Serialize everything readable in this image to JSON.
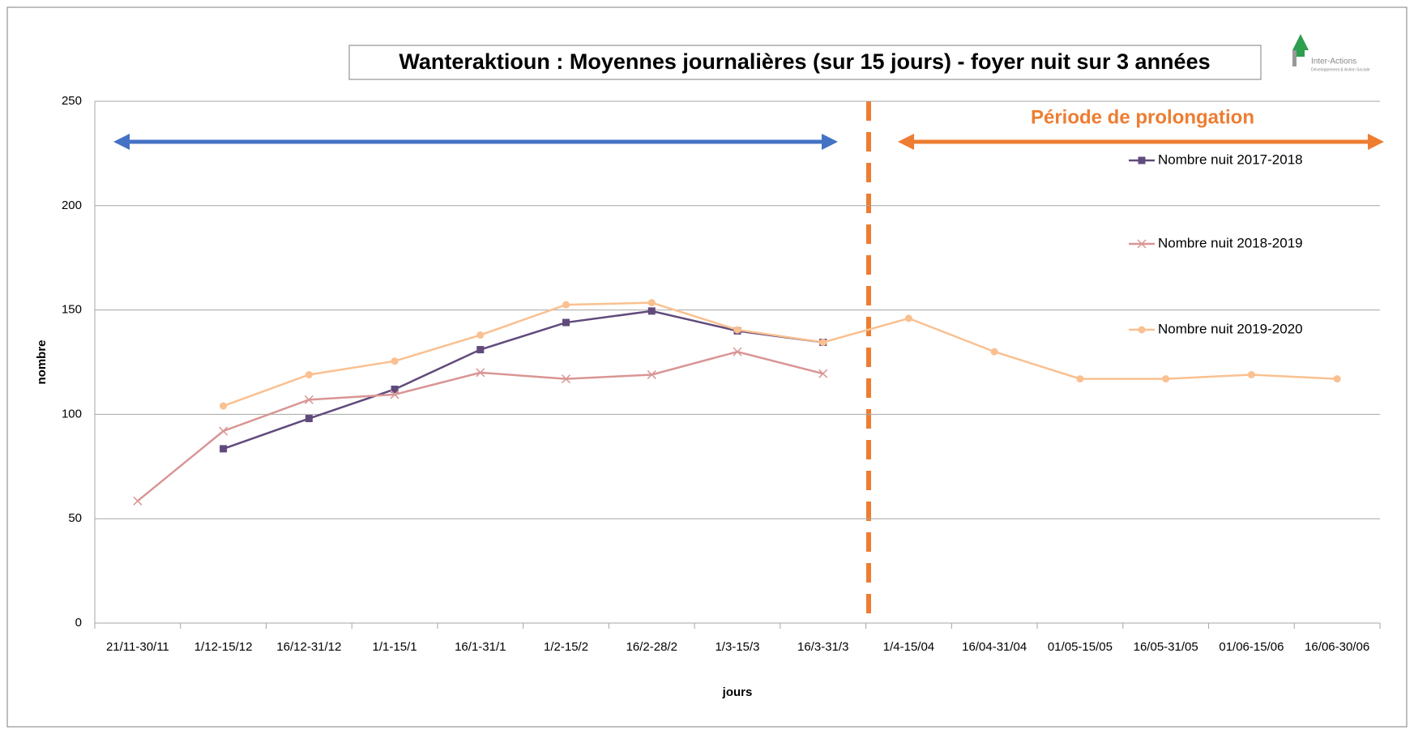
{
  "chart_data": {
    "type": "line",
    "title": "Wanteraktioun : Moyennes journalières (sur 15 jours) - foyer nuit sur 3 années",
    "x_label": "jours",
    "y_label": "nombre",
    "annotation": "Période de prolongation",
    "categories": [
      "21/11-30/11",
      "1/12-15/12",
      "16/12-31/12",
      "1/1-15/1",
      "16/1-31/1",
      "1/2-15/2",
      "16/2-28/2",
      "1/3-15/3",
      "16/3-31/3",
      "1/4-15/04",
      "16/04-31/04",
      "01/05-15/05",
      "16/05-31/05",
      "01/06-15/06",
      "16/06-30/06"
    ],
    "series": [
      {
        "name": "Nombre nuit 2017-2018",
        "color": "#604a7b",
        "marker": "square",
        "values": [
          null,
          83.5,
          98,
          112,
          131,
          144,
          149.5,
          140,
          134.5,
          null,
          null,
          null,
          null,
          null,
          null
        ]
      },
      {
        "name": "Nombre nuit 2018-2019",
        "color": "#d99594",
        "marker": "x",
        "values": [
          58.5,
          92,
          107,
          109.5,
          120,
          117,
          119,
          130,
          119.5,
          null,
          null,
          null,
          null,
          null,
          null
        ]
      },
      {
        "name": "Nombre nuit 2019-2020",
        "color": "#fac090",
        "marker": "circle",
        "values": [
          null,
          104,
          119,
          125.5,
          138,
          152.5,
          153.5,
          140.5,
          134.5,
          146,
          130,
          117,
          117,
          119,
          117
        ]
      }
    ],
    "ylim": [
      0,
      250
    ],
    "yticks": [
      0,
      50,
      100,
      150,
      200,
      250
    ],
    "grid": true
  },
  "logo": {
    "name": "Inter-Actions",
    "tagline": "Développement & Action Sociale"
  }
}
